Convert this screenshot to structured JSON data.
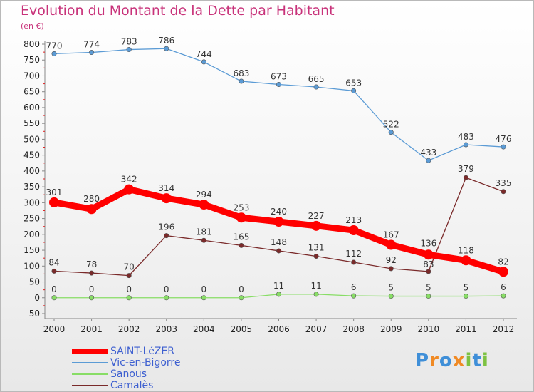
{
  "chart_data": {
    "type": "line",
    "title": "Evolution du Montant de la Dette par Habitant",
    "subtitle": "(en €)",
    "x": [
      "2000",
      "2001",
      "2002",
      "2003",
      "2004",
      "2005",
      "2006",
      "2007",
      "2008",
      "2009",
      "2010",
      "2011",
      "2012"
    ],
    "yticks": [
      "800",
      "750",
      "700",
      "650",
      "600",
      "550",
      "500",
      "450",
      "400",
      "350",
      "300",
      "250",
      "200",
      "150",
      "100",
      "50",
      "0",
      "-50"
    ],
    "ylim": [
      -50,
      800
    ],
    "grid": false,
    "legend_position": "bottom-left",
    "series": [
      {
        "name": "SAINT-LéZER",
        "color": "#ff0000",
        "values": [
          301,
          280,
          342,
          314,
          294,
          253,
          240,
          227,
          213,
          167,
          136,
          118,
          82
        ],
        "labels": [
          "301",
          "280",
          "342",
          "314",
          "294",
          "253",
          "240",
          "227",
          "213",
          "167",
          "136",
          "118",
          "82"
        ]
      },
      {
        "name": "Vic-en-Bigorre",
        "color": "#5b9bd5",
        "values": [
          770,
          774,
          783,
          786,
          744,
          683,
          673,
          665,
          653,
          522,
          433,
          483,
          476
        ],
        "labels": [
          "770",
          "774",
          "783",
          "786",
          "744",
          "683",
          "673",
          "665",
          "653",
          "522",
          "433",
          "483",
          "476"
        ]
      },
      {
        "name": "Sanous",
        "color": "#88dd66",
        "values": [
          0,
          0,
          0,
          0,
          0,
          0,
          11,
          11,
          6,
          5,
          5,
          5,
          6
        ],
        "labels": [
          "0",
          "0",
          "0",
          "0",
          "0",
          "0",
          "11",
          "11",
          "6",
          "5",
          "5",
          "5",
          "6"
        ]
      },
      {
        "name": "Camalès",
        "color": "#7a2a2a",
        "values": [
          84,
          78,
          70,
          196,
          181,
          165,
          148,
          131,
          112,
          92,
          83,
          379,
          335
        ],
        "labels": [
          "84",
          "78",
          "70",
          "196",
          "181",
          "165",
          "148",
          "131",
          "112",
          "92",
          "83",
          "379",
          "335"
        ]
      }
    ]
  },
  "logo": {
    "letters": [
      "P",
      "r",
      "o",
      "x",
      "i",
      "t",
      "i"
    ],
    "colors": [
      "#3f8fd8",
      "#f08a24",
      "#3f8fd8",
      "#f08a24",
      "#7dc242",
      "#3f8fd8",
      "#7dc242"
    ]
  }
}
